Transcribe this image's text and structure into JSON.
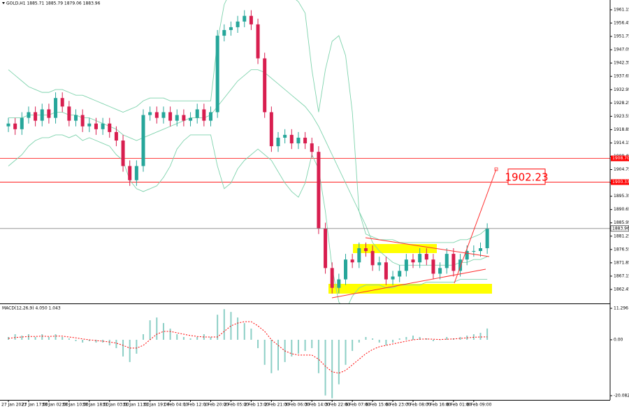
{
  "chart_data": [
    {
      "type": "candlestick",
      "title": "GOLD,H1 1885.71 1885.79 1879.06 1883.96",
      "categories": [
        "27 Jan 2023",
        null,
        null,
        "27 Jan 17:00",
        null,
        null,
        "30 Jan 02:00",
        null,
        null,
        "30 Jan 10:00",
        null,
        null,
        "30 Jan 18:00",
        null,
        null,
        "31 Jan 03:00",
        null,
        null,
        "31 Jan 11:00",
        null,
        null,
        "31 Jan 19:00",
        null,
        null,
        "1 Feb 04:00",
        null,
        null,
        "1 Feb 12:00",
        null,
        null,
        "1 Feb 20:00",
        null,
        null,
        "2 Feb 05:00",
        null,
        null,
        "2 Feb 13:00",
        null,
        null,
        "2 Feb 21:00",
        null,
        null,
        "3 Feb 06:00",
        null,
        null,
        "3 Feb 14:00",
        null,
        null,
        "3 Feb 22:00",
        null,
        null,
        "6 Feb 07:00",
        null,
        null,
        "6 Feb 15:00",
        null,
        null,
        "6 Feb 23:00",
        null,
        null,
        "7 Feb 08:00",
        null,
        null,
        "7 Feb 16:00",
        null,
        null,
        "8 Feb 01:00",
        null,
        null,
        "8 Feb 09:00",
        null,
        null
      ],
      "open": [
        1920,
        1921,
        1919,
        1923,
        1925,
        1922,
        1926,
        1923,
        1930,
        1927,
        1922,
        1924,
        1920,
        1921,
        1919,
        1921,
        1918,
        1915,
        1906,
        1901,
        1906,
        1924,
        1925,
        1923,
        1925,
        1922,
        1924,
        1922,
        1923,
        1926,
        1922,
        1925,
        1952,
        1954,
        1955,
        1957,
        1959,
        1956,
        1944,
        1925,
        1913,
        1916,
        1917,
        1914,
        1916,
        1914,
        1911,
        1884,
        1870,
        1863,
        1866,
        1873,
        1872,
        1877,
        1876,
        1871,
        1872,
        1866,
        1867,
        1869,
        1873,
        1872,
        1875,
        1873,
        1868,
        1870,
        1875,
        1869,
        1873,
        1876,
        1876,
        1877
      ],
      "high": [
        1923,
        1923,
        1925,
        1927,
        1927,
        1928,
        1928,
        1932,
        1932,
        1929,
        1926,
        1926,
        1923,
        1923,
        1923,
        1923,
        1920,
        1917,
        1908,
        1908,
        1926,
        1927,
        1927,
        1927,
        1927,
        1926,
        1926,
        1925,
        1928,
        1928,
        1927,
        1954,
        1956,
        1957,
        1959,
        1961,
        1961,
        1958,
        1946,
        1927,
        1918,
        1919,
        1919,
        1918,
        1918,
        1916,
        1913,
        1886,
        1872,
        1868,
        1875,
        1875,
        1879,
        1879,
        1878,
        1874,
        1874,
        1869,
        1871,
        1875,
        1875,
        1877,
        1877,
        1875,
        1872,
        1877,
        1877,
        1875,
        1878,
        1878,
        1879,
        1885.79
      ],
      "low": [
        1918,
        1917,
        1917,
        1921,
        1920,
        1920,
        1921,
        1921,
        1925,
        1920,
        1920,
        1918,
        1918,
        1917,
        1917,
        1916,
        1913,
        1904,
        1899,
        1899,
        1904,
        1922,
        1921,
        1921,
        1920,
        1920,
        1920,
        1920,
        1921,
        1920,
        1920,
        1923,
        1950,
        1952,
        1953,
        1955,
        1954,
        1942,
        1923,
        1911,
        1911,
        1914,
        1912,
        1912,
        1912,
        1909,
        1882,
        1868,
        1861,
        1861,
        1864,
        1870,
        1870,
        1874,
        1869,
        1869,
        1864,
        1864,
        1865,
        1867,
        1870,
        1870,
        1871,
        1866,
        1866,
        1868,
        1867,
        1867,
        1871,
        1874,
        1874,
        1875
      ],
      "close": [
        1921,
        1919,
        1923,
        1925,
        1922,
        1926,
        1923,
        1930,
        1927,
        1922,
        1924,
        1920,
        1921,
        1919,
        1921,
        1918,
        1915,
        1906,
        1901,
        1906,
        1924,
        1925,
        1923,
        1925,
        1922,
        1924,
        1922,
        1923,
        1926,
        1922,
        1925,
        1952,
        1954,
        1955,
        1957,
        1959,
        1956,
        1944,
        1925,
        1913,
        1916,
        1917,
        1914,
        1916,
        1914,
        1911,
        1884,
        1870,
        1863,
        1866,
        1873,
        1872,
        1877,
        1876,
        1871,
        1872,
        1866,
        1867,
        1869,
        1873,
        1872,
        1875,
        1873,
        1868,
        1870,
        1875,
        1869,
        1873,
        1876,
        1876,
        1877,
        1883.96
      ],
      "up_color": "#26a69a",
      "down_color": "#d81e4f",
      "overlays": [
        {
          "color": "#7fd3ad",
          "values": [
            1940,
            1938,
            1936,
            1934,
            1933,
            1932,
            1932,
            1933,
            1933,
            1932,
            1931,
            1931,
            1930,
            1929,
            1928,
            1927,
            1926,
            1925,
            1926,
            1927,
            1929,
            1930,
            1930,
            1930,
            1929,
            1929,
            1929,
            1929,
            1929,
            1929,
            1929,
            1950,
            1963,
            1968,
            1970,
            1970,
            1970,
            1970,
            1968,
            1966,
            1966,
            1966,
            1966,
            1964,
            1960,
            1940,
            1925,
            1940,
            1950,
            1952,
            1945,
            1925,
            1890,
            1882,
            1881,
            1880,
            1880,
            1880,
            1879,
            1879,
            1879,
            1879,
            1879,
            1879,
            1879,
            1879,
            1879,
            1880,
            1880,
            1881,
            1882,
            1884
          ]
        },
        {
          "color": "#7fd3ad",
          "values": [
            1923,
            1923,
            1923,
            1924,
            1924,
            1924,
            1924,
            1925,
            1925,
            1924,
            1924,
            1923,
            1923,
            1922,
            1921,
            1920,
            1919,
            1917,
            1916,
            1915,
            1916,
            1917,
            1918,
            1919,
            1920,
            1921,
            1922,
            1923,
            1923,
            1923,
            1924,
            1927,
            1930,
            1933,
            1936,
            1938,
            1940,
            1940,
            1939,
            1937,
            1935,
            1933,
            1931,
            1929,
            1927,
            1924,
            1920,
            1915,
            1910,
            1905,
            1900,
            1895,
            1890,
            1885,
            1879,
            1876,
            1874,
            1872,
            1871,
            1871,
            1871,
            1871,
            1871,
            1871,
            1871,
            1871,
            1871,
            1872,
            1872,
            1873,
            1873,
            1874
          ]
        },
        {
          "color": "#7fd3ad",
          "values": [
            1906,
            1908,
            1910,
            1913,
            1915,
            1916,
            1916,
            1917,
            1917,
            1916,
            1917,
            1915,
            1916,
            1915,
            1914,
            1913,
            1910,
            1908,
            1901,
            1898,
            1897,
            1898,
            1899,
            1902,
            1906,
            1912,
            1915,
            1917,
            1917,
            1917,
            1917,
            1906,
            1898,
            1900,
            1905,
            1908,
            1910,
            1912,
            1910,
            1908,
            1904,
            1900,
            1897,
            1895,
            1900,
            1910,
            1905,
            1890,
            1870,
            1858,
            1855,
            1860,
            1863,
            1864,
            1864,
            1864,
            1863,
            1863,
            1864,
            1864,
            1864,
            1864,
            1865,
            1865,
            1865,
            1865,
            1865,
            1866,
            1866,
            1866,
            1866,
            1866
          ]
        }
      ],
      "hlines": [
        {
          "value": 1908.7,
          "label": "1908.70",
          "color": "#ff0000"
        },
        {
          "value": 1900.33,
          "label": "1900.33",
          "color": "#ff0000"
        }
      ],
      "target": 1902.23,
      "target_color": "#ff0000",
      "ylim": [
        1858,
        1964.6
      ],
      "yticks": [
        1961.15,
        1956.45,
        1951.75,
        1947.05,
        1942.35,
        1937.65,
        1932.95,
        1928.25,
        1923.55,
        1918.85,
        1914.15,
        1909.45,
        1904.75,
        1900.05,
        1895.35,
        1890.65,
        1885.95,
        1881.25,
        1876.55,
        1871.85,
        1867.15,
        1862.45
      ],
      "grid": false
    },
    {
      "type": "macd",
      "title": "MACD(12,26,9) 4.050 1.043",
      "histogram": {
        "color": "#8ccfc6",
        "values": [
          1,
          2,
          1.5,
          2,
          1,
          2,
          1,
          2,
          1,
          0.5,
          -0.5,
          -1,
          -0.5,
          -1,
          -1,
          -2,
          -3,
          -6,
          -8,
          -5,
          2,
          7,
          8,
          6,
          4,
          2,
          1,
          0.5,
          1,
          2,
          1,
          9,
          11,
          10,
          8,
          6,
          4,
          -3,
          -9,
          -12,
          -11,
          -8,
          -6,
          -5,
          -4,
          -3,
          -12,
          -20,
          -21,
          -16,
          -9,
          -4,
          -1,
          1,
          0.5,
          -1,
          -2,
          -1,
          0.5,
          1,
          1.5,
          1,
          0.5,
          -0.5,
          0,
          1,
          0.5,
          1,
          1.5,
          2,
          2.5,
          4.05
        ]
      },
      "signal": {
        "color": "#ff0000",
        "values": [
          0.5,
          0.8,
          1,
          1.2,
          1.2,
          1.3,
          1.2,
          1.3,
          1.3,
          1,
          0.7,
          0.3,
          0,
          -0.3,
          -0.5,
          -0.8,
          -1.2,
          -2,
          -3,
          -3,
          -2,
          0,
          2,
          3,
          3,
          2.5,
          2,
          1.5,
          1.2,
          1,
          1,
          1,
          3,
          5,
          6,
          6.5,
          6.5,
          5,
          3,
          0,
          -2,
          -4,
          -5,
          -5.5,
          -5.5,
          -5.5,
          -7,
          -9.5,
          -11.5,
          -12,
          -11,
          -9,
          -7,
          -5,
          -3.5,
          -2.5,
          -2,
          -1.5,
          -1,
          -0.5,
          0,
          0.2,
          0.3,
          0.2,
          0.1,
          0.2,
          0.3,
          0.5,
          0.7,
          0.9,
          1,
          1.043
        ]
      },
      "ylim": [
        -21.6,
        12.3
      ],
      "yticks": [
        11.296,
        {
          "value": 0,
          "label": "0.00"
        },
        -20.082
      ],
      "grid": false
    }
  ]
}
